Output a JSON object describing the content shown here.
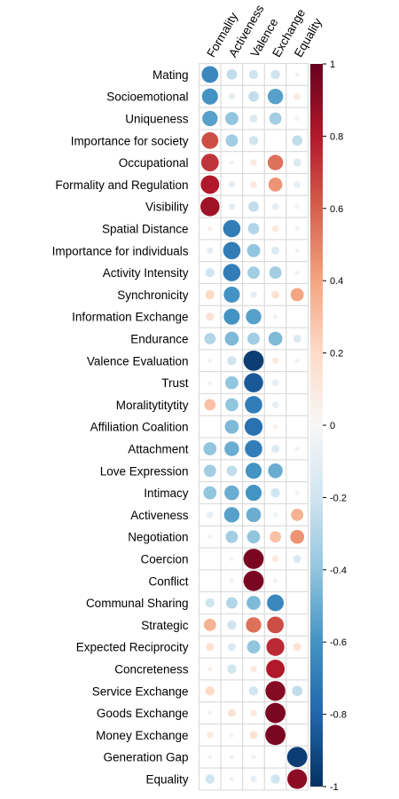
{
  "chart_data": {
    "type": "heatmap",
    "style": "circle-correlation-matrix",
    "columns": [
      "Formality",
      "Activeness",
      "Valence",
      "Exchange",
      "Equality"
    ],
    "rows": [
      "Mating",
      "Socioemotional",
      "Uniqueness",
      "Importance for society",
      "Occupational",
      "Formality and Regulation",
      "Visibility",
      "Spatial Distance",
      "Importance for individuals",
      "Activity Intensity",
      "Synchronicity",
      "Information Exchange",
      "Endurance",
      "Valence Evaluation",
      "Trust",
      "Moralitytitytity",
      "Affiliation Coalition",
      "Attachment",
      "Love Expression",
      "Intimacy",
      "Activeness",
      "Negotiation",
      "Coercion",
      "Conflict",
      "Communal Sharing",
      "Strategic",
      "Expected Reciprocity",
      "Concreteness",
      "Service Exchange",
      "Goods Exchange",
      "Money Exchange",
      "Generation Gap",
      "Equality"
    ],
    "values": [
      [
        -0.65,
        -0.25,
        -0.2,
        -0.2,
        -0.05
      ],
      [
        -0.6,
        -0.1,
        -0.25,
        -0.55,
        0.1
      ],
      [
        -0.55,
        -0.4,
        -0.15,
        -0.35,
        -0.05
      ],
      [
        0.65,
        -0.35,
        -0.2,
        0.0,
        -0.25
      ],
      [
        0.72,
        -0.05,
        0.1,
        0.55,
        -0.15
      ],
      [
        0.8,
        -0.1,
        0.1,
        0.45,
        -0.1
      ],
      [
        0.85,
        -0.1,
        -0.25,
        -0.1,
        -0.05
      ],
      [
        0.05,
        -0.7,
        -0.3,
        0.1,
        -0.05
      ],
      [
        -0.1,
        -0.7,
        -0.4,
        -0.15,
        -0.05
      ],
      [
        -0.2,
        -0.7,
        -0.35,
        -0.35,
        -0.05
      ],
      [
        0.2,
        -0.6,
        -0.1,
        0.15,
        0.4
      ],
      [
        0.15,
        -0.6,
        -0.55,
        -0.05,
        0.0
      ],
      [
        -0.3,
        -0.45,
        -0.35,
        -0.45,
        -0.15
      ],
      [
        -0.05,
        -0.2,
        -0.95,
        0.1,
        -0.05
      ],
      [
        -0.05,
        -0.4,
        -0.85,
        -0.1,
        0.0
      ],
      [
        0.3,
        -0.4,
        -0.7,
        -0.1,
        0.0
      ],
      [
        0.0,
        -0.45,
        -0.75,
        0.05,
        0.0
      ],
      [
        -0.4,
        -0.5,
        -0.7,
        -0.15,
        -0.05
      ],
      [
        -0.35,
        -0.25,
        -0.6,
        -0.5,
        0.0
      ],
      [
        -0.4,
        -0.5,
        -0.6,
        -0.2,
        -0.05
      ],
      [
        -0.1,
        -0.55,
        -0.5,
        -0.05,
        0.35
      ],
      [
        -0.05,
        -0.35,
        -0.4,
        0.3,
        0.45
      ],
      [
        0.0,
        -0.05,
        0.95,
        0.1,
        -0.15
      ],
      [
        0.0,
        0.05,
        0.95,
        -0.05,
        0.0
      ],
      [
        -0.2,
        -0.3,
        -0.45,
        -0.65,
        0.0
      ],
      [
        0.35,
        -0.2,
        0.55,
        0.65,
        0.0
      ],
      [
        0.15,
        -0.15,
        -0.4,
        0.75,
        0.15
      ],
      [
        0.05,
        -0.2,
        0.1,
        0.8,
        0.0
      ],
      [
        0.2,
        0.0,
        -0.2,
        0.92,
        -0.25
      ],
      [
        -0.05,
        0.15,
        0.1,
        0.95,
        0.0
      ],
      [
        0.1,
        -0.05,
        0.15,
        0.95,
        0.0
      ],
      [
        -0.05,
        -0.05,
        -0.05,
        0.0,
        -0.95
      ],
      [
        -0.2,
        -0.05,
        -0.1,
        -0.2,
        0.9
      ]
    ],
    "colorbar": {
      "range": [
        -1,
        1
      ],
      "ticks": [
        "1",
        "0.8",
        "0.6",
        "0.4",
        "0.2",
        "0",
        "-0.2",
        "-0.4",
        "-0.6",
        "-0.8",
        "-1"
      ],
      "tick_values": [
        1,
        0.8,
        0.6,
        0.4,
        0.2,
        0,
        -0.2,
        -0.4,
        -0.6,
        -0.8,
        -1
      ],
      "low_color": "#053061",
      "mid_color": "#F7F7F7",
      "high_color": "#67001F"
    },
    "grid": true,
    "legend": "right"
  }
}
